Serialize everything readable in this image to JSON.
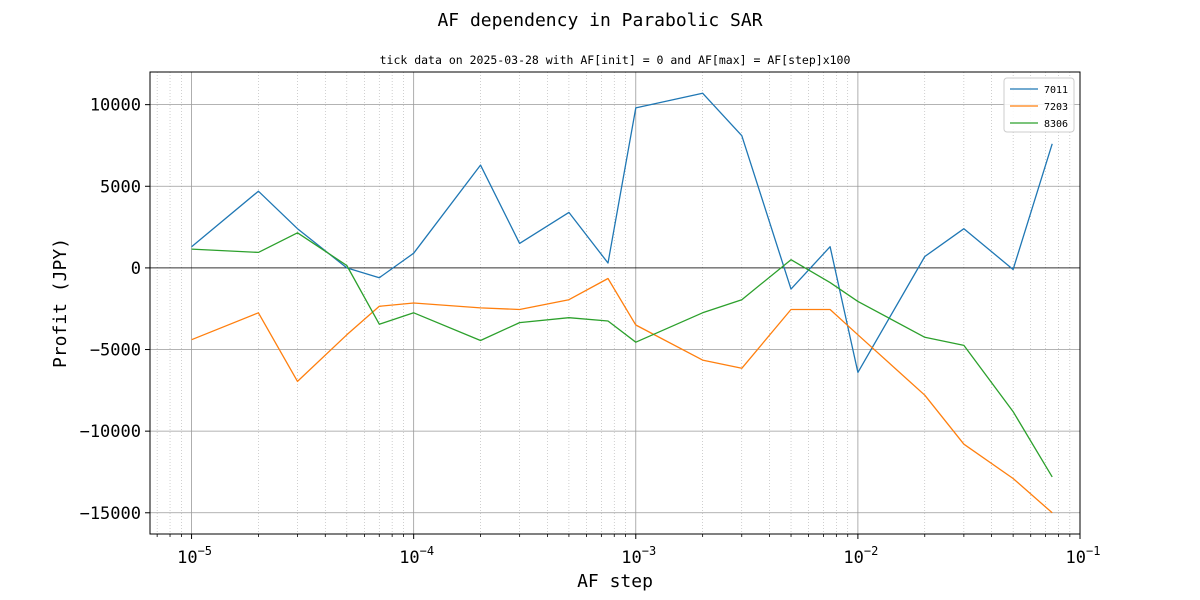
{
  "chart_data": {
    "type": "line",
    "suptitle": "AF dependency in Parabolic SAR",
    "title": "tick data on 2025-03-28 with AF[init] = 0 and AF[max] = AF[step]x100",
    "xlabel": "AF step",
    "ylabel": "Profit (JPY)",
    "xscale": "log",
    "xlim": [
      6.5e-06,
      0.1
    ],
    "ylim": [
      -16300,
      12000
    ],
    "grid": true,
    "legend_position": "top-right",
    "zero_line": 0,
    "x": [
      1e-05,
      2e-05,
      3e-05,
      5e-05,
      7e-05,
      0.0001,
      0.0002,
      0.0003,
      0.0005,
      0.00075,
      0.001,
      0.002,
      0.003,
      0.005,
      0.0075,
      0.01,
      0.02,
      0.03,
      0.05,
      0.075
    ],
    "series": [
      {
        "name": "7011",
        "color": "#1f77b4",
        "values": [
          1300,
          4700,
          2400,
          0,
          -600,
          900,
          6300,
          1500,
          3400,
          300,
          9800,
          10700,
          8100,
          -1300,
          1300,
          -6400,
          700,
          2400,
          -100,
          7600
        ]
      },
      {
        "name": "7203",
        "color": "#ff7f0e",
        "values": [
          -4400,
          -2750,
          -6950,
          -4100,
          -2350,
          -2150,
          -2450,
          -2550,
          -1950,
          -650,
          -3500,
          -5650,
          -6150,
          -2550,
          -2550,
          -4100,
          -7800,
          -10800,
          -12900,
          -15000
        ]
      },
      {
        "name": "8306",
        "color": "#2ca02c",
        "values": [
          1150,
          950,
          2150,
          150,
          -3450,
          -2750,
          -4450,
          -3350,
          -3050,
          -3250,
          -4550,
          -2750,
          -1950,
          500,
          -900,
          -2050,
          -4250,
          -4750,
          -8800,
          -12800
        ]
      }
    ],
    "yticks": [
      {
        "value": 10000,
        "label": "10000"
      },
      {
        "value": 5000,
        "label": "5000"
      },
      {
        "value": 0,
        "label": "0"
      },
      {
        "value": -5000,
        "label": "−5000"
      },
      {
        "value": -10000,
        "label": "−10000"
      },
      {
        "value": -15000,
        "label": "−15000"
      }
    ],
    "xticks": [
      {
        "value": 1e-05,
        "base": "10",
        "exp": "−5"
      },
      {
        "value": 0.0001,
        "base": "10",
        "exp": "−4"
      },
      {
        "value": 0.001,
        "base": "10",
        "exp": "−3"
      },
      {
        "value": 0.01,
        "base": "10",
        "exp": "−2"
      },
      {
        "value": 0.1,
        "base": "10",
        "exp": "−1"
      }
    ]
  }
}
